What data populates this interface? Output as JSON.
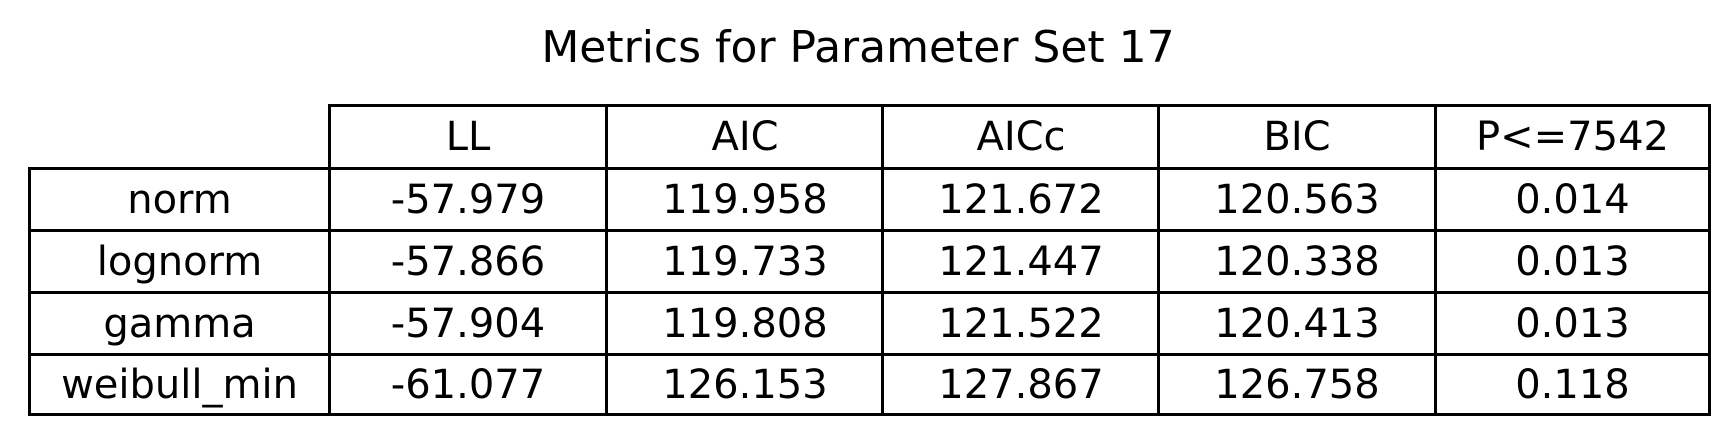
{
  "chart_data": {
    "type": "table",
    "title": "Metrics for Parameter Set 17",
    "columns": [
      "LL",
      "AIC",
      "AICc",
      "BIC",
      "P<=7542"
    ],
    "rows": [
      {
        "label": "norm",
        "values": [
          "-57.979",
          "119.958",
          "121.672",
          "120.563",
          "0.014"
        ]
      },
      {
        "label": "lognorm",
        "values": [
          "-57.866",
          "119.733",
          "121.447",
          "120.338",
          "0.013"
        ]
      },
      {
        "label": "gamma",
        "values": [
          "-57.904",
          "119.808",
          "121.522",
          "120.413",
          "0.013"
        ]
      },
      {
        "label": "weibull_min",
        "values": [
          "-61.077",
          "126.153",
          "127.867",
          "126.758",
          "0.118"
        ]
      }
    ]
  }
}
